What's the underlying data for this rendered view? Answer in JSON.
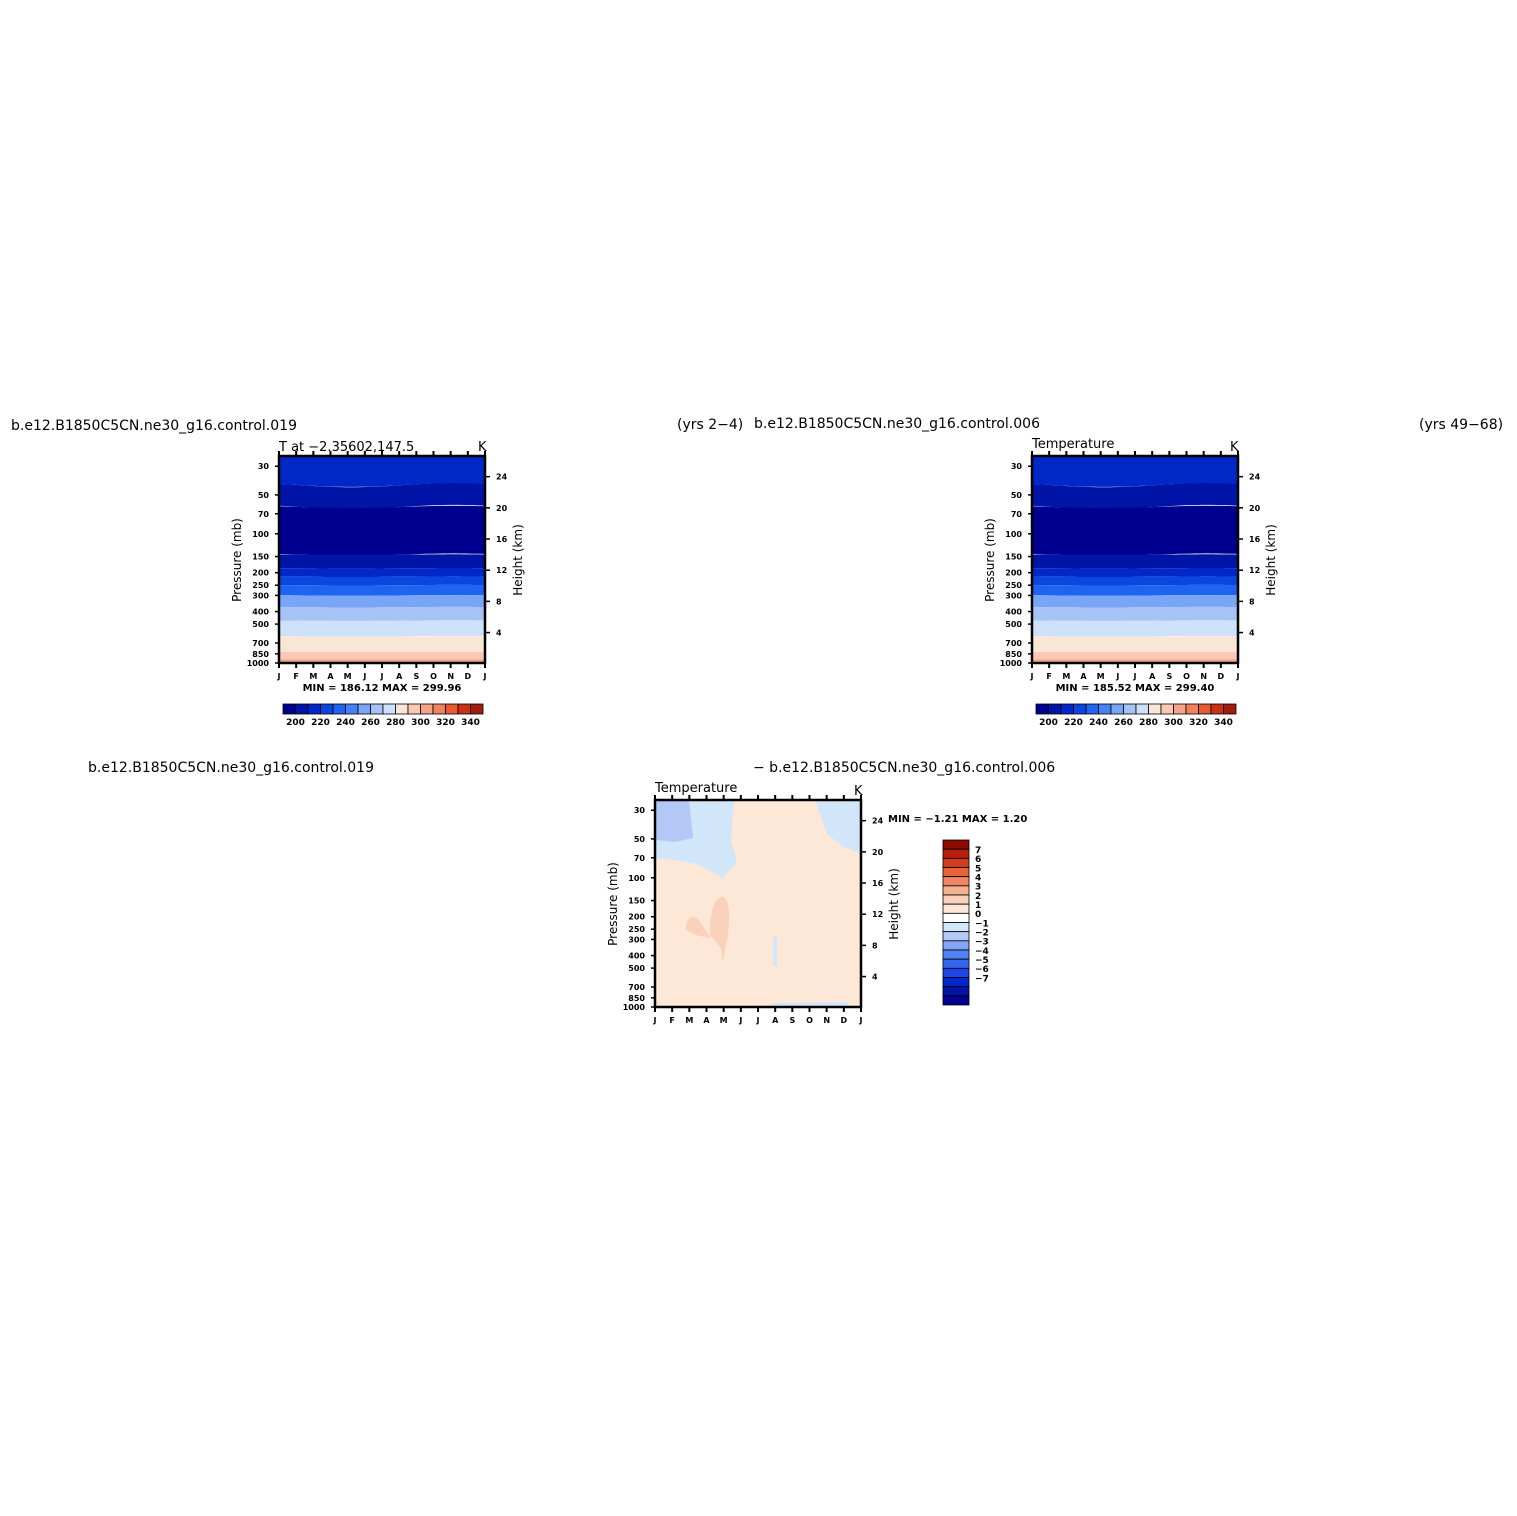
{
  "figure": {
    "case1_header": "b.e12.B1850C5CN.ne30_g16.control.019",
    "case1_years": "(yrs 2−4)",
    "case2_header": "b.e12.B1850C5CN.ne30_g16.control.006",
    "case2_years": "(yrs 49−68)",
    "diff_header_left": "b.e12.B1850C5CN.ne30_g16.control.019",
    "diff_header_right": "− b.e12.B1850C5CN.ne30_g16.control.006"
  },
  "colors": {
    "full_fill": [
      "#000090",
      "#0014a8",
      "#0028c8",
      "#0a46e0",
      "#1e64f0",
      "#4682f5",
      "#78a5f5",
      "#a5c3f5",
      "#cde1fa",
      "#fae6d7",
      "#fac8b4",
      "#f5a587",
      "#f0825f",
      "#e65a32",
      "#c83214",
      "#a01e0a",
      "#780000"
    ],
    "diff_fill": [
      "#000090",
      "#0014a8",
      "#0028c8",
      "#1e46e6",
      "#3264f0",
      "#5082f5",
      "#82a5f5",
      "#b4c8f8",
      "#d2e6fa",
      "#ffffff",
      "#fde8d8",
      "#fad2bc",
      "#f5af91",
      "#f08764",
      "#e6643c",
      "#d23c1e",
      "#b41e0a",
      "#8c0a00"
    ]
  },
  "chart_data": [
    {
      "type": "heatmap",
      "title": "T  at  −2.35602,147.5",
      "units": "K",
      "xlabel": "",
      "ylabel": "Pressure  (mb)",
      "ylabel_right": "Height  (km)",
      "x_ticks": [
        "J",
        "F",
        "M",
        "A",
        "M",
        "J",
        "J",
        "A",
        "S",
        "O",
        "N",
        "D",
        "J"
      ],
      "y_ticks": [
        "30",
        "50",
        "70",
        "100",
        "150",
        "200",
        "250",
        "300",
        "400",
        "500",
        "700",
        "850",
        "1000"
      ],
      "y_ticks_right": [
        "24",
        "20",
        "16",
        "12",
        "8",
        "4"
      ],
      "min_max": "MIN = 186.12  MAX = 299.96",
      "colorbar_labels": [
        "200",
        "220",
        "240",
        "260",
        "280",
        "300",
        "320",
        "340"
      ],
      "contour_levels": [
        190,
        200,
        210,
        220,
        230,
        240,
        250,
        260,
        270,
        280,
        290,
        300,
        310,
        320,
        330,
        340
      ],
      "yscale": "log",
      "grid": false
    },
    {
      "type": "heatmap",
      "title": "Temperature",
      "units": "K",
      "xlabel": "",
      "ylabel": "Pressure  (mb)",
      "ylabel_right": "Height  (km)",
      "x_ticks": [
        "J",
        "F",
        "M",
        "A",
        "M",
        "J",
        "J",
        "A",
        "S",
        "O",
        "N",
        "D",
        "J"
      ],
      "y_ticks": [
        "30",
        "50",
        "70",
        "100",
        "150",
        "200",
        "250",
        "300",
        "400",
        "500",
        "700",
        "850",
        "1000"
      ],
      "y_ticks_right": [
        "24",
        "20",
        "16",
        "12",
        "8",
        "4"
      ],
      "min_max": "MIN = 185.52  MAX = 299.40",
      "colorbar_labels": [
        "200",
        "220",
        "240",
        "260",
        "280",
        "300",
        "320",
        "340"
      ],
      "contour_levels": [
        190,
        200,
        210,
        220,
        230,
        240,
        250,
        260,
        270,
        280,
        290,
        300,
        310,
        320,
        330,
        340
      ],
      "yscale": "log",
      "grid": false
    },
    {
      "type": "heatmap",
      "title": "Temperature",
      "units": "K",
      "xlabel": "",
      "ylabel": "Pressure  (mb)",
      "ylabel_right": "Height  (km)",
      "x_ticks": [
        "J",
        "F",
        "M",
        "A",
        "M",
        "J",
        "J",
        "A",
        "S",
        "O",
        "N",
        "D",
        "J"
      ],
      "y_ticks": [
        "30",
        "50",
        "70",
        "100",
        "150",
        "200",
        "250",
        "300",
        "400",
        "500",
        "700",
        "850",
        "1000"
      ],
      "y_ticks_right": [
        "24",
        "20",
        "16",
        "12",
        "8",
        "4"
      ],
      "min_max": "MIN =    −1.21  MAX =     1.20",
      "colorbar_labels": [
        "7",
        "6",
        "5",
        "4",
        "3",
        "2",
        "1",
        "0",
        "−1",
        "−2",
        "−3",
        "−4",
        "−5",
        "−6",
        "−7"
      ],
      "contour_levels": [
        -8,
        -7,
        -6,
        -5,
        -4,
        -3,
        -2,
        -1,
        0,
        1,
        2,
        3,
        4,
        5,
        6,
        7,
        8
      ],
      "yscale": "log",
      "grid": false
    }
  ]
}
